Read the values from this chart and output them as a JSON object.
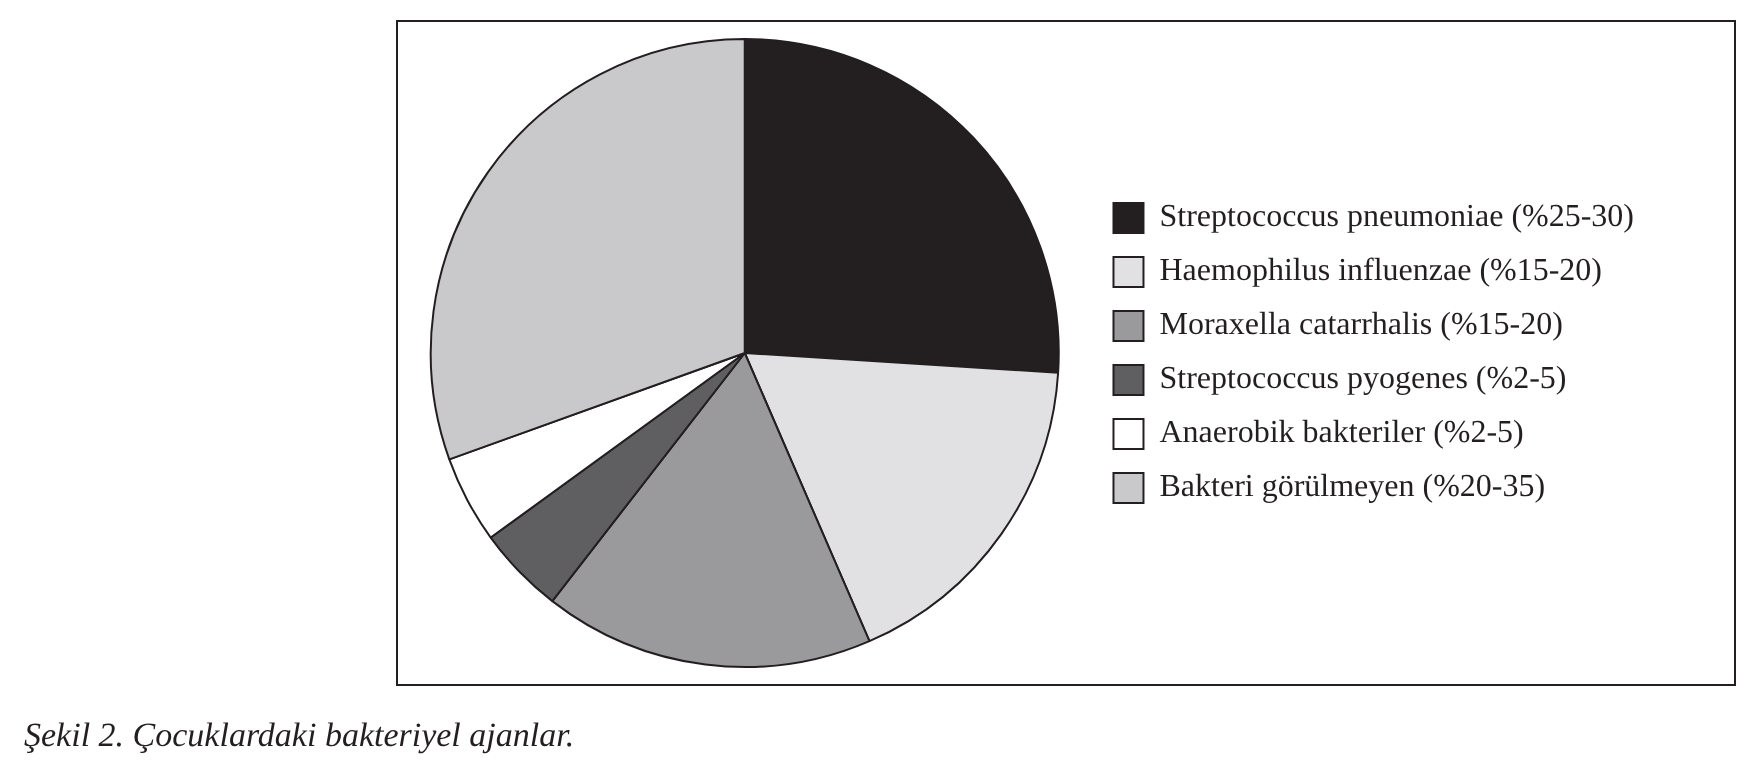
{
  "chart_data": {
    "type": "pie",
    "categories": [
      "Streptococcus pneumoniae (%25-30)",
      "Haemophilus influenzae (%15-20)",
      "Moraxella catarrhalis (%15-20)",
      "Streptococcus pyogenes (%2-5)",
      "Anaerobik bakteriler (%2-5)",
      "Bakteri görülmeyen (%20-35)"
    ],
    "values": [
      26,
      17.5,
      17,
      4.5,
      4.5,
      30.5
    ],
    "colors": [
      "#231f20",
      "#e1e1e3",
      "#9a9a9c",
      "#5f5f61",
      "#ffffff",
      "#c9c9cb"
    ],
    "legend": "right",
    "annotations": [
      "Şekil 2. Çocuklardaki bakteriyel ajanlar."
    ]
  }
}
